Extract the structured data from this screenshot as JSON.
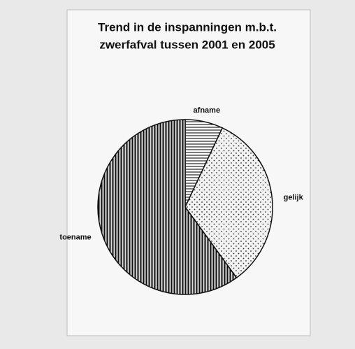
{
  "chart_data": {
    "type": "pie",
    "title": [
      "Trend in de inspanningen m.b.t.",
      "zwerfafval tussen 2001 en 2005"
    ],
    "categories": [
      "afname",
      "gelijk",
      "toename"
    ],
    "values": [
      7,
      33,
      60
    ],
    "patterns": [
      "horizontal",
      "dotted",
      "vertical"
    ]
  }
}
